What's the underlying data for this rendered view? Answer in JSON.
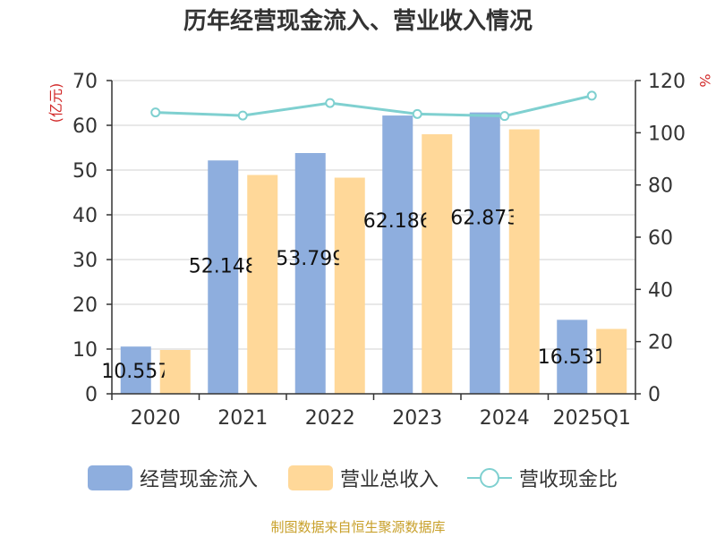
{
  "chart_data": {
    "type": "bar",
    "title": "历年经营现金流入、营业收入情况",
    "categories": [
      "2020",
      "2021",
      "2022",
      "2023",
      "2024",
      "2025Q1"
    ],
    "y_left": {
      "label": "(亿元)",
      "range": [
        0,
        70
      ],
      "ticks": [
        0,
        10,
        20,
        30,
        40,
        50,
        60,
        70
      ]
    },
    "y_right": {
      "label": "%",
      "range": [
        0,
        120
      ],
      "ticks": [
        0,
        20,
        40,
        60,
        80,
        100,
        120
      ]
    },
    "series": [
      {
        "name": "经营现金流入",
        "type": "bar",
        "axis": "left",
        "color": "#8eaede",
        "values": [
          10.557,
          52.148,
          53.799,
          62.186,
          62.873,
          16.531
        ],
        "data_labels": [
          "10.557",
          "52.148",
          "53.799",
          "62.186",
          "62.873",
          "16.531"
        ]
      },
      {
        "name": "营业总收入",
        "type": "bar",
        "axis": "left",
        "color": "#ffd899",
        "values": [
          9.8,
          48.9,
          48.3,
          58.0,
          59.1,
          14.5
        ]
      },
      {
        "name": "营收现金比",
        "type": "line",
        "axis": "right",
        "color": "#7fd0d0",
        "values": [
          107.8,
          106.6,
          111.4,
          107.2,
          106.4,
          114.2
        ]
      }
    ],
    "grid": true,
    "legend": "bottom"
  },
  "source_text": "制图数据来自恒生聚源数据库"
}
